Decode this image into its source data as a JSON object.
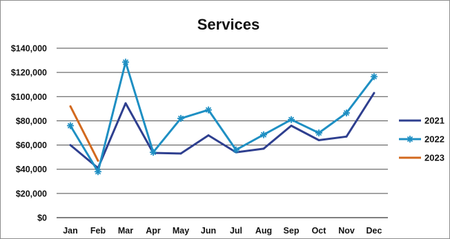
{
  "chart_data": {
    "type": "line",
    "title": "Services",
    "xlabel": "",
    "ylabel": "",
    "categories": [
      "Jan",
      "Feb",
      "Mar",
      "Apr",
      "May",
      "Jun",
      "Jul",
      "Aug",
      "Sep",
      "Oct",
      "Nov",
      "Dec"
    ],
    "ylim": [
      0,
      140000
    ],
    "yticks": [
      0,
      20000,
      40000,
      60000,
      80000,
      100000,
      120000,
      140000
    ],
    "ytick_labels": [
      "$0",
      "$20,000",
      "$40,000",
      "$60,000",
      "$80,000",
      "$100,000",
      "$120,000",
      "$140,000"
    ],
    "grid": true,
    "legend_position": "right",
    "series": [
      {
        "name": "2021",
        "color": "#2e3f8f",
        "marker": "none",
        "values": [
          60000,
          41000,
          94500,
          53500,
          53000,
          68000,
          54000,
          57000,
          76000,
          64000,
          67000,
          103000
        ]
      },
      {
        "name": "2022",
        "color": "#1e8fc3",
        "marker": "asterisk",
        "values": [
          76000,
          38000,
          128500,
          54000,
          82000,
          89000,
          56000,
          68500,
          81000,
          70000,
          86500,
          116500
        ]
      },
      {
        "name": "2023",
        "color": "#d2691e",
        "marker": "none",
        "values": [
          92000,
          47000,
          null,
          null,
          null,
          null,
          null,
          null,
          null,
          null,
          null,
          null
        ]
      }
    ]
  }
}
